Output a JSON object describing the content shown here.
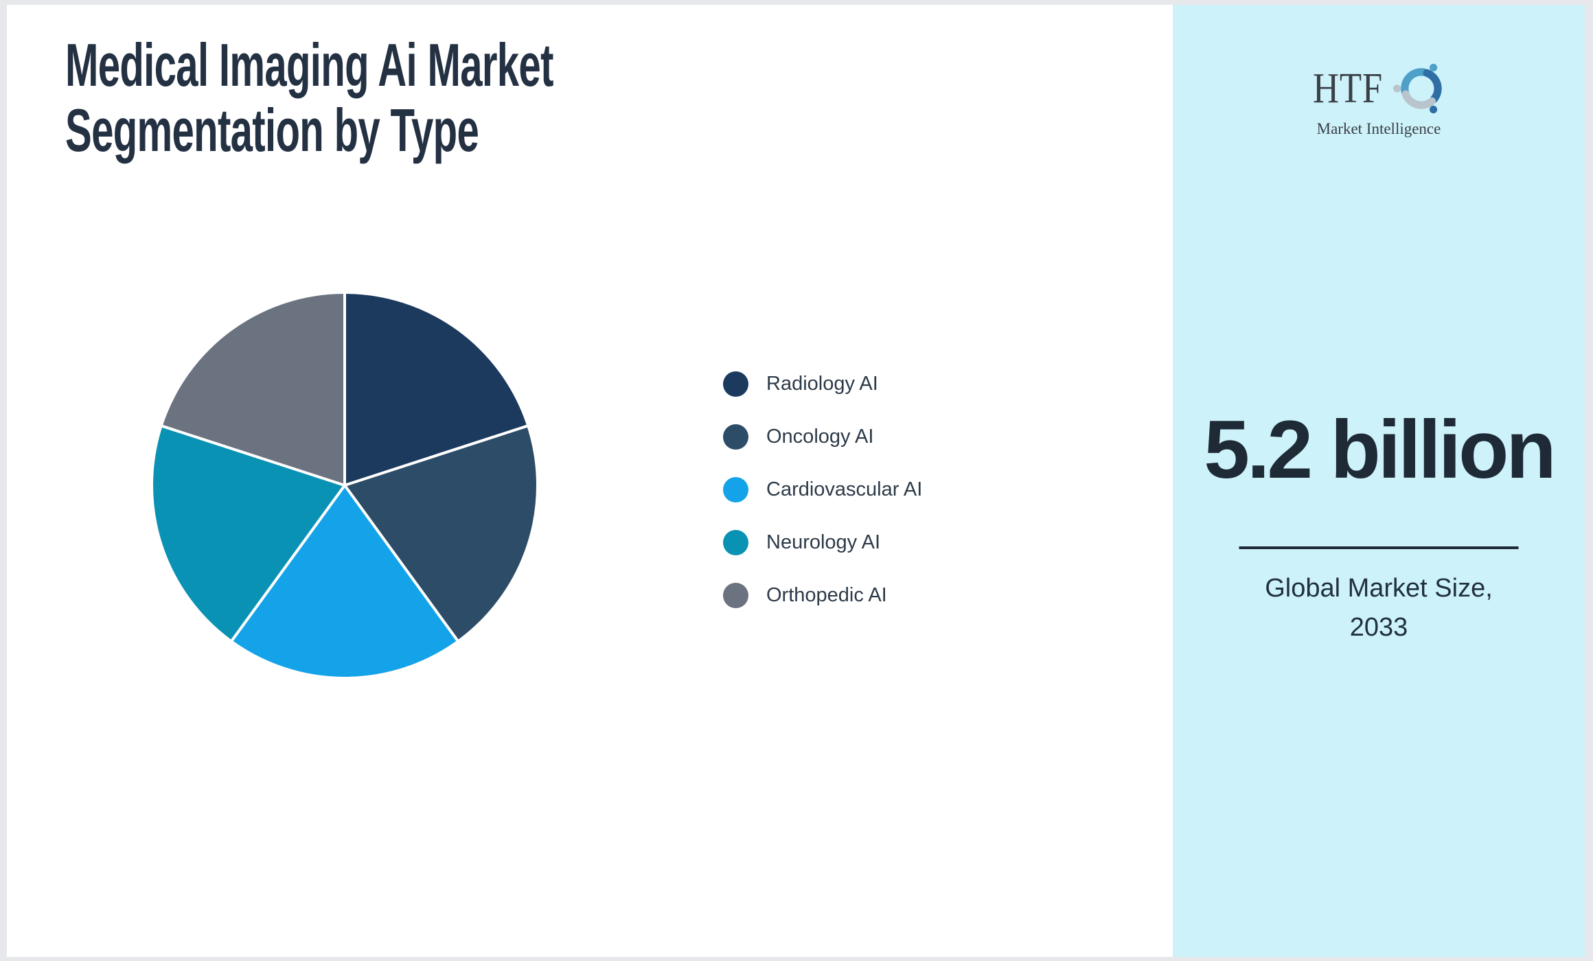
{
  "page": {
    "frame_color": "#e7e8ec",
    "card_color": "#ffffff"
  },
  "header": {
    "title_lines": [
      "Medical Imaging Ai Market",
      "Segmentation by Type"
    ],
    "title_color": "#243143"
  },
  "chart_data": {
    "type": "pie",
    "title": "Medical Imaging Ai Market Segmentation by Type",
    "labels": [
      "Radiology AI",
      "Oncology AI",
      "Cardiovascular AI",
      "Neurology AI",
      "Orthopedic AI"
    ],
    "values": [
      20,
      20,
      20,
      20,
      20
    ],
    "note": "five visually equal slices (~72° / ~20% each), estimated from pie geometry",
    "colors": [
      "#1c3a5e",
      "#2d4c68",
      "#14a3e8",
      "#0992b4",
      "#6b7280"
    ],
    "start_angle_deg": 0,
    "direction": "clockwise",
    "slice_border_color": "#ffffff",
    "legend_position": "right",
    "legend_text_color": "#2d3a48"
  },
  "sidebar": {
    "background": "#cdf2fa",
    "logo": {
      "brand": "HTF",
      "tagline": "Market Intelligence",
      "swirl_colors": [
        "#4fa0c8",
        "#2f6ea5",
        "#b9c4cc"
      ]
    },
    "market_size": "5.2 billion",
    "caption_lines": [
      "Global Market Size,",
      "2033"
    ],
    "text_color": "#1f2a37"
  }
}
